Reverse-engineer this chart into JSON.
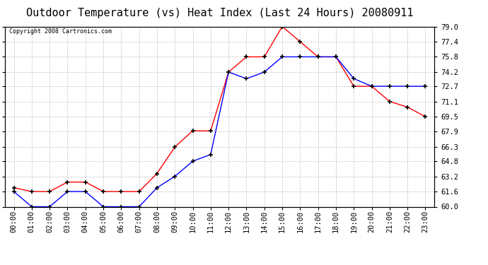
{
  "title": "Outdoor Temperature (vs) Heat Index (Last 24 Hours) 20080911",
  "copyright": "Copyright 2008 Cartronics.com",
  "x_labels": [
    "00:00",
    "01:00",
    "02:00",
    "03:00",
    "04:00",
    "05:00",
    "06:00",
    "07:00",
    "08:00",
    "09:00",
    "10:00",
    "11:00",
    "12:00",
    "13:00",
    "14:00",
    "15:00",
    "16:00",
    "17:00",
    "18:00",
    "19:00",
    "20:00",
    "21:00",
    "22:00",
    "23:00"
  ],
  "red_data": [
    62.0,
    61.6,
    61.6,
    62.6,
    62.6,
    61.6,
    61.6,
    61.6,
    63.5,
    66.3,
    68.0,
    68.0,
    74.2,
    75.8,
    75.8,
    79.0,
    77.4,
    75.8,
    75.8,
    72.7,
    72.7,
    71.1,
    70.5,
    69.5
  ],
  "blue_data": [
    61.6,
    60.0,
    60.0,
    61.6,
    61.6,
    60.0,
    60.0,
    60.0,
    62.0,
    63.2,
    64.8,
    65.5,
    74.2,
    73.5,
    74.2,
    75.8,
    75.8,
    75.8,
    75.8,
    73.5,
    72.7,
    72.7,
    72.7,
    72.7
  ],
  "red_color": "#FF0000",
  "blue_color": "#0000FF",
  "background_color": "#FFFFFF",
  "plot_bg_color": "#FFFFFF",
  "grid_color": "#BBBBBB",
  "ylim_min": 60.0,
  "ylim_max": 79.0,
  "yticks": [
    60.0,
    61.6,
    63.2,
    64.8,
    66.3,
    67.9,
    69.5,
    71.1,
    72.7,
    74.2,
    75.8,
    77.4,
    79.0
  ],
  "title_fontsize": 11,
  "copyright_fontsize": 6,
  "tick_fontsize": 7.5
}
